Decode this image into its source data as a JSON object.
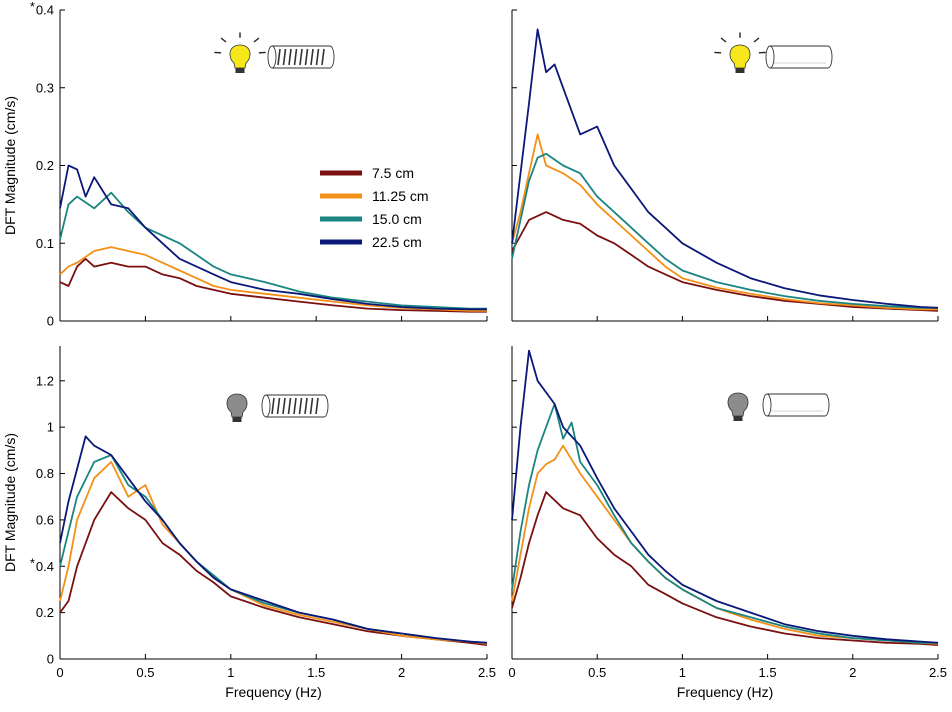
{
  "chart_data": {
    "type": "line",
    "x_range": [
      0,
      2.5
    ],
    "x_ticks": [
      0,
      0.5,
      1,
      1.5,
      2,
      2.5
    ],
    "x_tick_labels": [
      "0",
      "0.5",
      "1",
      "1.5",
      "2",
      "2.5"
    ],
    "xlabel": "Frequency (Hz)",
    "ylabel": "DFT Magnitude (cm/s)",
    "series_colors": {
      "7.5 cm": "#7a1010",
      "11.25 cm": "#f39018",
      "15.0 cm": "#1a8580",
      "22.5 cm": "#0a1878"
    },
    "legend": {
      "placement": "top-left panel, center",
      "entries": [
        "7.5 cm",
        "11.25 cm",
        "15.0 cm",
        "22.5 cm"
      ]
    },
    "panels": [
      {
        "id": "top-left",
        "light": "on",
        "stimulus": "striped-drum",
        "ylim": [
          0,
          0.4
        ],
        "y_ticks": [
          0,
          0.1,
          0.2,
          0.3,
          0.4
        ],
        "y_tick_labels": [
          "0",
          "0.1",
          "0.2",
          "0.3",
          "0.4"
        ],
        "y_marked_label": "0.4",
        "asterisk": "*",
        "show_xlabel": false,
        "show_ylabel": true,
        "series": [
          {
            "name": "7.5 cm",
            "x": [
              0,
              0.05,
              0.1,
              0.15,
              0.2,
              0.3,
              0.4,
              0.5,
              0.6,
              0.7,
              0.8,
              0.9,
              1.0,
              1.2,
              1.4,
              1.6,
              1.8,
              2.0,
              2.2,
              2.4,
              2.5
            ],
            "y": [
              0.05,
              0.045,
              0.07,
              0.08,
              0.07,
              0.075,
              0.07,
              0.07,
              0.06,
              0.055,
              0.045,
              0.04,
              0.035,
              0.03,
              0.025,
              0.02,
              0.016,
              0.014,
              0.013,
              0.012,
              0.012
            ]
          },
          {
            "name": "11.25 cm",
            "x": [
              0,
              0.05,
              0.1,
              0.2,
              0.3,
              0.4,
              0.5,
              0.6,
              0.7,
              0.8,
              0.9,
              1.0,
              1.2,
              1.4,
              1.6,
              1.8,
              2.0,
              2.2,
              2.4,
              2.5
            ],
            "y": [
              0.06,
              0.07,
              0.075,
              0.09,
              0.095,
              0.09,
              0.085,
              0.075,
              0.065,
              0.055,
              0.045,
              0.04,
              0.035,
              0.03,
              0.025,
              0.02,
              0.017,
              0.015,
              0.013,
              0.013
            ]
          },
          {
            "name": "15.0 cm",
            "x": [
              0,
              0.05,
              0.1,
              0.2,
              0.3,
              0.4,
              0.5,
              0.6,
              0.7,
              0.8,
              0.9,
              1.0,
              1.2,
              1.4,
              1.6,
              1.8,
              2.0,
              2.2,
              2.4,
              2.5
            ],
            "y": [
              0.105,
              0.15,
              0.16,
              0.145,
              0.165,
              0.14,
              0.12,
              0.11,
              0.1,
              0.085,
              0.07,
              0.06,
              0.05,
              0.038,
              0.03,
              0.025,
              0.02,
              0.018,
              0.016,
              0.016
            ]
          },
          {
            "name": "22.5 cm",
            "x": [
              0,
              0.05,
              0.1,
              0.15,
              0.2,
              0.3,
              0.4,
              0.5,
              0.6,
              0.7,
              0.8,
              0.9,
              1.0,
              1.2,
              1.4,
              1.6,
              1.8,
              2.0,
              2.2,
              2.4,
              2.5
            ],
            "y": [
              0.145,
              0.2,
              0.195,
              0.16,
              0.185,
              0.15,
              0.145,
              0.12,
              0.1,
              0.08,
              0.07,
              0.06,
              0.05,
              0.04,
              0.035,
              0.028,
              0.022,
              0.018,
              0.016,
              0.015,
              0.015
            ]
          }
        ]
      },
      {
        "id": "top-right",
        "light": "on",
        "stimulus": "blank-drum",
        "ylim": [
          0,
          0.4
        ],
        "y_ticks": [
          0,
          0.1,
          0.2,
          0.3,
          0.4
        ],
        "y_tick_labels": [],
        "show_xlabel": false,
        "show_ylabel": false,
        "series": [
          {
            "name": "7.5 cm",
            "x": [
              0,
              0.05,
              0.1,
              0.2,
              0.3,
              0.4,
              0.5,
              0.6,
              0.7,
              0.8,
              0.9,
              1.0,
              1.2,
              1.4,
              1.6,
              1.8,
              2.0,
              2.2,
              2.4,
              2.5
            ],
            "y": [
              0.09,
              0.11,
              0.13,
              0.14,
              0.13,
              0.125,
              0.11,
              0.1,
              0.085,
              0.07,
              0.06,
              0.05,
              0.04,
              0.032,
              0.026,
              0.022,
              0.018,
              0.016,
              0.014,
              0.013
            ]
          },
          {
            "name": "11.25 cm",
            "x": [
              0,
              0.05,
              0.1,
              0.15,
              0.2,
              0.3,
              0.4,
              0.5,
              0.6,
              0.7,
              0.8,
              0.9,
              1.0,
              1.2,
              1.4,
              1.6,
              1.8,
              2.0,
              2.2,
              2.4,
              2.5
            ],
            "y": [
              0.1,
              0.14,
              0.19,
              0.24,
              0.2,
              0.19,
              0.175,
              0.15,
              0.13,
              0.11,
              0.09,
              0.07,
              0.055,
              0.043,
              0.035,
              0.028,
              0.023,
              0.02,
              0.017,
              0.015,
              0.015
            ]
          },
          {
            "name": "15.0 cm",
            "x": [
              0,
              0.05,
              0.1,
              0.15,
              0.2,
              0.3,
              0.4,
              0.5,
              0.6,
              0.7,
              0.8,
              0.9,
              1.0,
              1.2,
              1.4,
              1.6,
              1.8,
              2.0,
              2.2,
              2.4,
              2.5
            ],
            "y": [
              0.08,
              0.13,
              0.18,
              0.21,
              0.215,
              0.2,
              0.19,
              0.16,
              0.14,
              0.12,
              0.1,
              0.08,
              0.065,
              0.05,
              0.04,
              0.032,
              0.026,
              0.022,
              0.019,
              0.017,
              0.017
            ]
          },
          {
            "name": "22.5 cm",
            "x": [
              0,
              0.05,
              0.1,
              0.15,
              0.2,
              0.25,
              0.3,
              0.4,
              0.5,
              0.6,
              0.7,
              0.8,
              0.9,
              1.0,
              1.2,
              1.4,
              1.6,
              1.8,
              2.0,
              2.2,
              2.4,
              2.5
            ],
            "y": [
              0.1,
              0.19,
              0.28,
              0.375,
              0.32,
              0.33,
              0.3,
              0.24,
              0.25,
              0.2,
              0.17,
              0.14,
              0.12,
              0.1,
              0.075,
              0.055,
              0.042,
              0.033,
              0.027,
              0.022,
              0.018,
              0.017
            ]
          }
        ]
      },
      {
        "id": "bottom-left",
        "light": "off",
        "stimulus": "striped-drum",
        "ylim": [
          0,
          1.35
        ],
        "y_ticks": [
          0,
          0.2,
          0.4,
          0.6,
          0.8,
          1,
          1.2
        ],
        "y_tick_labels": [
          "0",
          "0.2",
          "0.4",
          "0.6",
          "0.8",
          "1",
          "1.2"
        ],
        "y_marked_label": "0.4",
        "asterisk": "*",
        "show_xlabel": true,
        "show_ylabel": true,
        "series": [
          {
            "name": "7.5 cm",
            "x": [
              0,
              0.05,
              0.1,
              0.2,
              0.3,
              0.4,
              0.5,
              0.6,
              0.7,
              0.8,
              0.9,
              1.0,
              1.2,
              1.4,
              1.6,
              1.8,
              2.0,
              2.2,
              2.4,
              2.5
            ],
            "y": [
              0.2,
              0.25,
              0.4,
              0.6,
              0.72,
              0.65,
              0.6,
              0.5,
              0.45,
              0.38,
              0.33,
              0.27,
              0.22,
              0.18,
              0.15,
              0.12,
              0.1,
              0.085,
              0.07,
              0.06
            ]
          },
          {
            "name": "11.25 cm",
            "x": [
              0,
              0.05,
              0.1,
              0.2,
              0.3,
              0.4,
              0.5,
              0.6,
              0.7,
              0.8,
              0.9,
              1.0,
              1.2,
              1.4,
              1.6,
              1.8,
              2.0,
              2.2,
              2.4,
              2.5
            ],
            "y": [
              0.25,
              0.4,
              0.6,
              0.78,
              0.85,
              0.7,
              0.75,
              0.58,
              0.5,
              0.42,
              0.35,
              0.3,
              0.23,
              0.19,
              0.16,
              0.13,
              0.1,
              0.085,
              0.075,
              0.065
            ]
          },
          {
            "name": "15.0 cm",
            "x": [
              0,
              0.05,
              0.1,
              0.2,
              0.3,
              0.4,
              0.5,
              0.6,
              0.7,
              0.8,
              0.9,
              1.0,
              1.2,
              1.4,
              1.6,
              1.8,
              2.0,
              2.2,
              2.4,
              2.5
            ],
            "y": [
              0.4,
              0.55,
              0.7,
              0.85,
              0.88,
              0.75,
              0.7,
              0.6,
              0.5,
              0.42,
              0.36,
              0.3,
              0.24,
              0.2,
              0.17,
              0.13,
              0.11,
              0.09,
              0.075,
              0.07
            ]
          },
          {
            "name": "22.5 cm",
            "x": [
              0,
              0.05,
              0.1,
              0.15,
              0.2,
              0.3,
              0.4,
              0.5,
              0.6,
              0.7,
              0.8,
              0.9,
              1.0,
              1.2,
              1.4,
              1.6,
              1.8,
              2.0,
              2.2,
              2.4,
              2.5
            ],
            "y": [
              0.5,
              0.68,
              0.82,
              0.96,
              0.92,
              0.88,
              0.78,
              0.68,
              0.6,
              0.5,
              0.42,
              0.35,
              0.3,
              0.25,
              0.2,
              0.17,
              0.13,
              0.11,
              0.09,
              0.075,
              0.07
            ]
          }
        ]
      },
      {
        "id": "bottom-right",
        "light": "off",
        "stimulus": "blank-drum",
        "ylim": [
          0,
          1.35
        ],
        "y_ticks": [
          0,
          0.2,
          0.4,
          0.6,
          0.8,
          1,
          1.2
        ],
        "y_tick_labels": [],
        "show_xlabel": true,
        "show_ylabel": false,
        "series": [
          {
            "name": "7.5 cm",
            "x": [
              0,
              0.05,
              0.1,
              0.15,
              0.2,
              0.3,
              0.4,
              0.5,
              0.6,
              0.7,
              0.8,
              0.9,
              1.0,
              1.2,
              1.4,
              1.6,
              1.8,
              2.0,
              2.2,
              2.4,
              2.5
            ],
            "y": [
              0.22,
              0.35,
              0.5,
              0.62,
              0.72,
              0.65,
              0.62,
              0.52,
              0.45,
              0.4,
              0.32,
              0.28,
              0.24,
              0.18,
              0.14,
              0.11,
              0.09,
              0.08,
              0.07,
              0.065,
              0.06
            ]
          },
          {
            "name": "11.25 cm",
            "x": [
              0,
              0.05,
              0.1,
              0.15,
              0.2,
              0.25,
              0.3,
              0.4,
              0.5,
              0.6,
              0.7,
              0.8,
              0.9,
              1.0,
              1.2,
              1.4,
              1.6,
              1.8,
              2.0,
              2.2,
              2.4,
              2.5
            ],
            "y": [
              0.25,
              0.45,
              0.65,
              0.8,
              0.84,
              0.86,
              0.92,
              0.8,
              0.7,
              0.6,
              0.5,
              0.42,
              0.35,
              0.3,
              0.22,
              0.17,
              0.13,
              0.1,
              0.09,
              0.08,
              0.07,
              0.065
            ]
          },
          {
            "name": "15.0 cm",
            "x": [
              0,
              0.05,
              0.1,
              0.15,
              0.2,
              0.25,
              0.3,
              0.35,
              0.4,
              0.5,
              0.6,
              0.7,
              0.8,
              0.9,
              1.0,
              1.2,
              1.4,
              1.6,
              1.8,
              2.0,
              2.2,
              2.4,
              2.5
            ],
            "y": [
              0.3,
              0.55,
              0.75,
              0.9,
              1.0,
              1.1,
              0.95,
              1.02,
              0.85,
              0.75,
              0.62,
              0.5,
              0.42,
              0.35,
              0.3,
              0.22,
              0.18,
              0.14,
              0.11,
              0.09,
              0.08,
              0.07,
              0.07
            ]
          },
          {
            "name": "22.5 cm",
            "x": [
              0,
              0.05,
              0.1,
              0.15,
              0.2,
              0.25,
              0.3,
              0.4,
              0.5,
              0.6,
              0.7,
              0.8,
              0.9,
              1.0,
              1.2,
              1.4,
              1.6,
              1.8,
              2.0,
              2.2,
              2.4,
              2.5
            ],
            "y": [
              0.6,
              1.0,
              1.33,
              1.2,
              1.15,
              1.1,
              1.0,
              0.92,
              0.78,
              0.65,
              0.55,
              0.45,
              0.38,
              0.32,
              0.25,
              0.2,
              0.15,
              0.12,
              0.1,
              0.085,
              0.075,
              0.07
            ]
          }
        ]
      }
    ]
  }
}
